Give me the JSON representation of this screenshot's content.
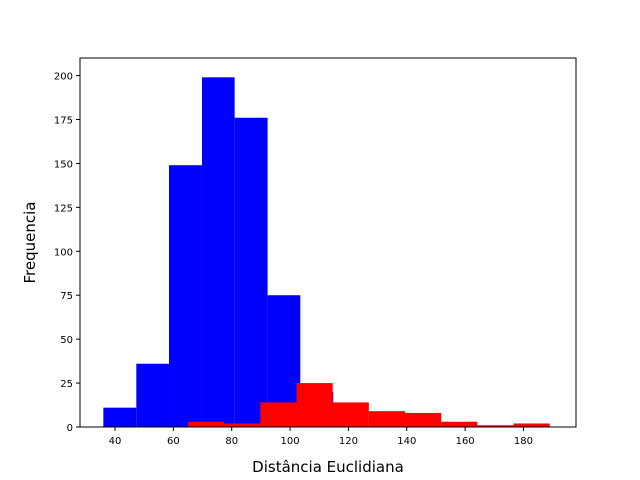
{
  "chart_data": {
    "type": "bar",
    "title": "",
    "xlabel": "Distância Euclidiana",
    "ylabel": "Frequencia",
    "xlim": [
      28,
      198
    ],
    "ylim": [
      0,
      210
    ],
    "xticks": [
      40,
      60,
      80,
      100,
      120,
      140,
      160,
      180
    ],
    "yticks": [
      0,
      25,
      50,
      75,
      100,
      125,
      150,
      175,
      200
    ],
    "grid": false,
    "series": [
      {
        "color": "#0000ff",
        "bins": [
          {
            "x0": 36.0,
            "x1": 47.3,
            "value": 11
          },
          {
            "x0": 47.3,
            "x1": 58.5,
            "value": 36
          },
          {
            "x0": 58.5,
            "x1": 69.8,
            "value": 149
          },
          {
            "x0": 69.8,
            "x1": 81.0,
            "value": 199
          },
          {
            "x0": 81.0,
            "x1": 92.3,
            "value": 176
          },
          {
            "x0": 92.3,
            "x1": 103.5,
            "value": 75
          },
          {
            "x0": 103.5,
            "x1": 114.8,
            "value": 20
          }
        ]
      },
      {
        "color": "#ff0000",
        "bins": [
          {
            "x0": 65.0,
            "x1": 77.4,
            "value": 3
          },
          {
            "x0": 77.4,
            "x1": 89.8,
            "value": 2
          },
          {
            "x0": 89.8,
            "x1": 102.2,
            "value": 14
          },
          {
            "x0": 102.2,
            "x1": 114.6,
            "value": 25
          },
          {
            "x0": 114.6,
            "x1": 127.0,
            "value": 14
          },
          {
            "x0": 127.0,
            "x1": 139.4,
            "value": 9
          },
          {
            "x0": 139.4,
            "x1": 151.8,
            "value": 8
          },
          {
            "x0": 151.8,
            "x1": 164.2,
            "value": 3
          },
          {
            "x0": 164.2,
            "x1": 176.6,
            "value": 1
          },
          {
            "x0": 176.6,
            "x1": 189.0,
            "value": 2
          }
        ]
      }
    ]
  }
}
